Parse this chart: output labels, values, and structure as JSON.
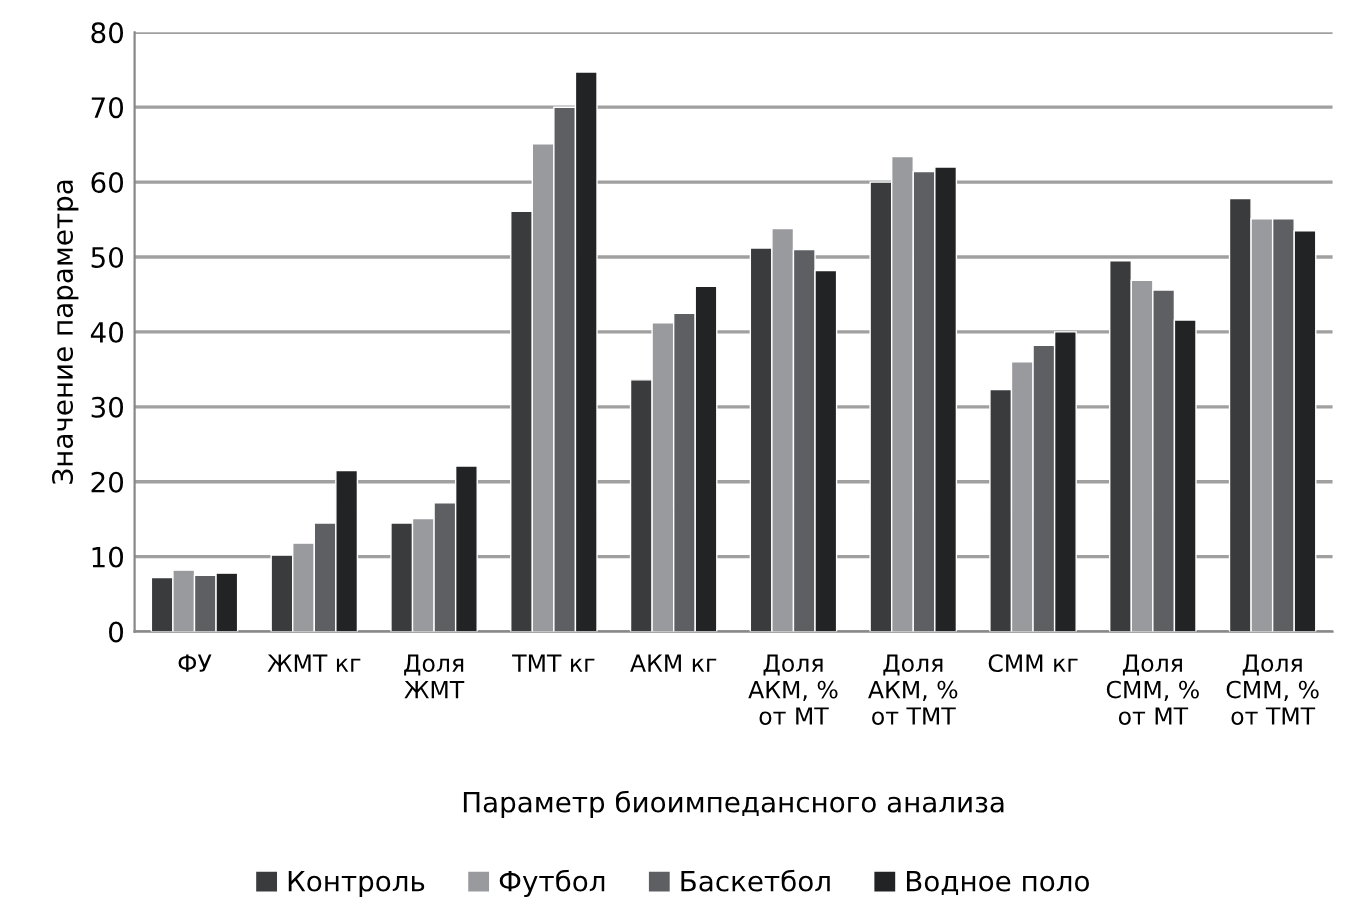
{
  "chart_data": {
    "type": "bar",
    "xlabel": "Параметр биоимпедансного анализа",
    "ylabel": "Значение параметра",
    "categories": [
      "ФУ",
      "ЖМТ кг",
      "Доля\nЖМТ",
      "ТМТ кг",
      "АКМ кг",
      "Доля\nАКМ, %\nот МТ",
      "Доля\nАКМ, %\nот ТМТ",
      "СММ кг",
      "Доля\nСММ, %\nот МТ",
      "Доля\nСММ, %\nот ТМТ"
    ],
    "series": [
      {
        "name": "Контроль",
        "color": "#3a3b3d",
        "values": [
          7.2,
          10.2,
          14.5,
          56.1,
          33.6,
          51.2,
          60,
          32.3,
          49.5,
          57.8
        ]
      },
      {
        "name": "Футбол",
        "color": "#999a9e",
        "values": [
          8.2,
          11.8,
          15.1,
          65.1,
          41.2,
          53.8,
          63.4,
          36,
          46.9,
          55.1
        ]
      },
      {
        "name": "Баскетбол",
        "color": "#5e5f63",
        "values": [
          7.5,
          14.5,
          17.2,
          70,
          42.5,
          51,
          61.4,
          38.2,
          45.6,
          55.1
        ]
      },
      {
        "name": "Водное поло",
        "color": "#222325",
        "values": [
          7.8,
          21.5,
          22.1,
          74.7,
          46.1,
          48.2,
          62,
          40,
          41.6,
          53.5
        ]
      }
    ],
    "ylim": [
      0,
      80
    ],
    "yticks": [
      0,
      10,
      20,
      30,
      40,
      50,
      60,
      70,
      80
    ],
    "grid": "y",
    "legend": "bottom"
  }
}
